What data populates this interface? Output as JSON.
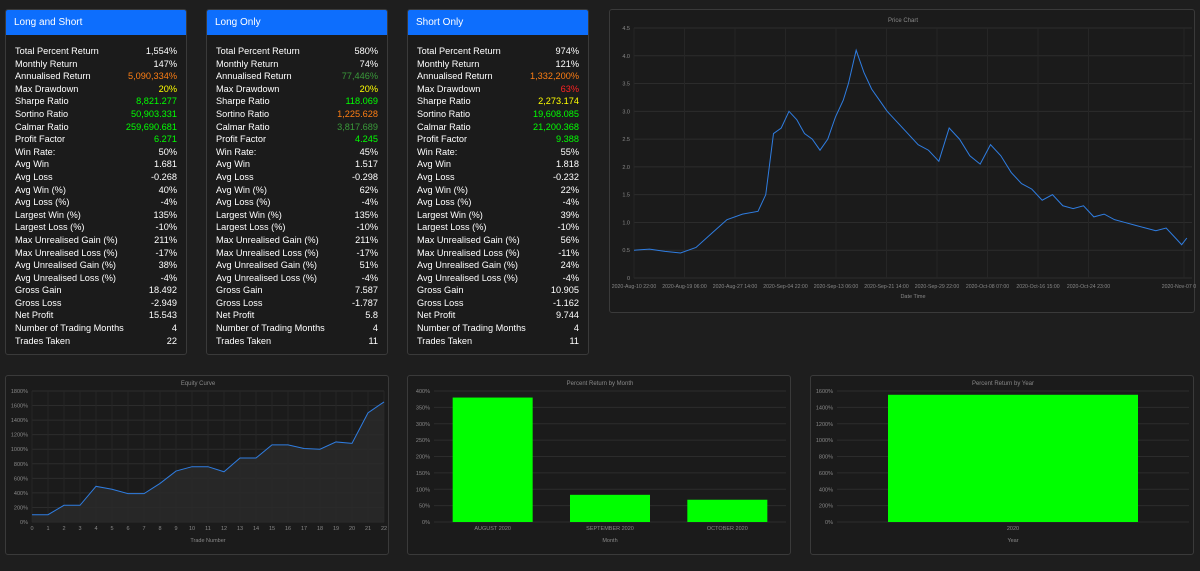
{
  "colors": {
    "accent": "#0d6efd",
    "orange": "#fd7e14",
    "green": "#00ff00",
    "yellow": "#ffff00",
    "red": "#ff2222",
    "line": "#2f7de1",
    "bar": "#00ff00"
  },
  "cards": [
    {
      "title": "Long and Short",
      "rows": [
        {
          "label": "Total Percent Return",
          "value": "1,554%",
          "color": "white"
        },
        {
          "label": "Monthly Return",
          "value": "147%",
          "color": "white"
        },
        {
          "label": "Annualised Return",
          "value": "5,090,334%",
          "color": "orange"
        },
        {
          "label": "Max Drawdown",
          "value": "20%",
          "color": "yellow"
        },
        {
          "label": "Sharpe Ratio",
          "value": "8,821.277",
          "color": "green"
        },
        {
          "label": "Sortino Ratio",
          "value": "50,903.331",
          "color": "green"
        },
        {
          "label": "Calmar Ratio",
          "value": "259,690.681",
          "color": "green"
        },
        {
          "label": "Profit Factor",
          "value": "6.271",
          "color": "green"
        },
        {
          "label": "Win Rate:",
          "value": "50%",
          "color": "white"
        },
        {
          "label": "Avg Win",
          "value": "1.681",
          "color": "white"
        },
        {
          "label": "Avg Loss",
          "value": "-0.268",
          "color": "white"
        },
        {
          "label": "Avg Win (%)",
          "value": "40%",
          "color": "white"
        },
        {
          "label": "Avg Loss (%)",
          "value": "-4%",
          "color": "white"
        },
        {
          "label": "Largest Win (%)",
          "value": "135%",
          "color": "white"
        },
        {
          "label": "Largest Loss (%)",
          "value": "-10%",
          "color": "white"
        },
        {
          "label": "Max Unrealised Gain (%)",
          "value": "211%",
          "color": "white"
        },
        {
          "label": "Max Unrealised Loss (%)",
          "value": "-17%",
          "color": "white"
        },
        {
          "label": "Avg Unrealised Gain (%)",
          "value": "38%",
          "color": "white"
        },
        {
          "label": "Avg Unrealised Loss (%)",
          "value": "-4%",
          "color": "white"
        },
        {
          "label": "Gross Gain",
          "value": "18.492",
          "color": "white"
        },
        {
          "label": "Gross Loss",
          "value": "-2.949",
          "color": "white"
        },
        {
          "label": "Net Profit",
          "value": "15.543",
          "color": "white"
        },
        {
          "label": "Number of Trading Months",
          "value": "4",
          "color": "white"
        },
        {
          "label": "Trades Taken",
          "value": "22",
          "color": "white"
        }
      ]
    },
    {
      "title": "Long Only",
      "rows": [
        {
          "label": "Total Percent Return",
          "value": "580%",
          "color": "white"
        },
        {
          "label": "Monthly Return",
          "value": "74%",
          "color": "white"
        },
        {
          "label": "Annualised Return",
          "value": "77,446%",
          "color": "darkgreen"
        },
        {
          "label": "Max Drawdown",
          "value": "20%",
          "color": "yellow"
        },
        {
          "label": "Sharpe Ratio",
          "value": "118.069",
          "color": "green"
        },
        {
          "label": "Sortino Ratio",
          "value": "1,225.628",
          "color": "orange"
        },
        {
          "label": "Calmar Ratio",
          "value": "3,817.689",
          "color": "darkgreen"
        },
        {
          "label": "Profit Factor",
          "value": "4.245",
          "color": "green"
        },
        {
          "label": "Win Rate:",
          "value": "45%",
          "color": "white"
        },
        {
          "label": "Avg Win",
          "value": "1.517",
          "color": "white"
        },
        {
          "label": "Avg Loss",
          "value": "-0.298",
          "color": "white"
        },
        {
          "label": "Avg Win (%)",
          "value": "62%",
          "color": "white"
        },
        {
          "label": "Avg Loss (%)",
          "value": "-4%",
          "color": "white"
        },
        {
          "label": "Largest Win (%)",
          "value": "135%",
          "color": "white"
        },
        {
          "label": "Largest Loss (%)",
          "value": "-10%",
          "color": "white"
        },
        {
          "label": "Max Unrealised Gain (%)",
          "value": "211%",
          "color": "white"
        },
        {
          "label": "Max Unrealised Loss (%)",
          "value": "-17%",
          "color": "white"
        },
        {
          "label": "Avg Unrealised Gain (%)",
          "value": "51%",
          "color": "white"
        },
        {
          "label": "Avg Unrealised Loss (%)",
          "value": "-4%",
          "color": "white"
        },
        {
          "label": "Gross Gain",
          "value": "7.587",
          "color": "white"
        },
        {
          "label": "Gross Loss",
          "value": "-1.787",
          "color": "white"
        },
        {
          "label": "Net Profit",
          "value": "5.8",
          "color": "white"
        },
        {
          "label": "Number of Trading Months",
          "value": "4",
          "color": "white"
        },
        {
          "label": "Trades Taken",
          "value": "11",
          "color": "white"
        }
      ]
    },
    {
      "title": "Short Only",
      "rows": [
        {
          "label": "Total Percent Return",
          "value": "974%",
          "color": "white"
        },
        {
          "label": "Monthly Return",
          "value": "121%",
          "color": "white"
        },
        {
          "label": "Annualised Return",
          "value": "1,332,200%",
          "color": "orange"
        },
        {
          "label": "Max Drawdown",
          "value": "63%",
          "color": "red"
        },
        {
          "label": "Sharpe Ratio",
          "value": "2,273.174",
          "color": "yellow"
        },
        {
          "label": "Sortino Ratio",
          "value": "19,608.085",
          "color": "green"
        },
        {
          "label": "Calmar Ratio",
          "value": "21,200.368",
          "color": "green"
        },
        {
          "label": "Profit Factor",
          "value": "9.388",
          "color": "green"
        },
        {
          "label": "Win Rate:",
          "value": "55%",
          "color": "white"
        },
        {
          "label": "Avg Win",
          "value": "1.818",
          "color": "white"
        },
        {
          "label": "Avg Loss",
          "value": "-0.232",
          "color": "white"
        },
        {
          "label": "Avg Win (%)",
          "value": "22%",
          "color": "white"
        },
        {
          "label": "Avg Loss (%)",
          "value": "-4%",
          "color": "white"
        },
        {
          "label": "Largest Win (%)",
          "value": "39%",
          "color": "white"
        },
        {
          "label": "Largest Loss (%)",
          "value": "-10%",
          "color": "white"
        },
        {
          "label": "Max Unrealised Gain (%)",
          "value": "56%",
          "color": "white"
        },
        {
          "label": "Max Unrealised Loss (%)",
          "value": "-11%",
          "color": "white"
        },
        {
          "label": "Avg Unrealised Gain (%)",
          "value": "24%",
          "color": "white"
        },
        {
          "label": "Avg Unrealised Loss (%)",
          "value": "-4%",
          "color": "white"
        },
        {
          "label": "Gross Gain",
          "value": "10.905",
          "color": "white"
        },
        {
          "label": "Gross Loss",
          "value": "-1.162",
          "color": "white"
        },
        {
          "label": "Net Profit",
          "value": "9.744",
          "color": "white"
        },
        {
          "label": "Number of Trading Months",
          "value": "4",
          "color": "white"
        },
        {
          "label": "Trades Taken",
          "value": "11",
          "color": "white"
        }
      ]
    }
  ],
  "chart_data": [
    {
      "type": "line",
      "title": "Price Chart",
      "xlabel": "Date Time",
      "ylabel": "",
      "ylim": [
        0,
        4.5
      ],
      "yticks": [
        "0",
        "0.5",
        "1.0",
        "1.5",
        "2.0",
        "2.5",
        "3.0",
        "3.5",
        "4.0",
        "4.5"
      ],
      "xticks": [
        "2020-Aug-10 22:00",
        "2020-Aug-19 06:00",
        "2020-Aug-27 14:00",
        "2020-Sep-04 22:00",
        "2020-Sep-13 06:00",
        "2020-Sep-21 14:00",
        "2020-Sep-29 22:00",
        "2020-Oct-08 07:00",
        "2020-Oct-16 15:00",
        "2020-Oct-24 23:00",
        "2020-Nov-07 07:00"
      ],
      "xrange": [
        0,
        10.8
      ],
      "x": [
        0,
        0.3,
        0.6,
        0.9,
        1.2,
        1.5,
        1.8,
        2.1,
        2.4,
        2.55,
        2.7,
        2.85,
        3.0,
        3.15,
        3.3,
        3.45,
        3.6,
        3.75,
        3.9,
        4.05,
        4.15,
        4.3,
        4.45,
        4.6,
        4.75,
        4.9,
        5.1,
        5.3,
        5.5,
        5.7,
        5.9,
        6.1,
        6.3,
        6.5,
        6.7,
        6.9,
        7.1,
        7.3,
        7.5,
        7.7,
        7.9,
        8.1,
        8.3,
        8.5,
        8.7,
        8.9,
        9.1,
        9.3,
        9.5,
        9.7,
        9.9,
        10.1,
        10.3,
        10.5,
        10.6,
        10.7
      ],
      "y": [
        0.5,
        0.52,
        0.48,
        0.45,
        0.55,
        0.8,
        1.05,
        1.15,
        1.2,
        1.5,
        2.6,
        2.7,
        3.0,
        2.85,
        2.6,
        2.5,
        2.3,
        2.5,
        2.9,
        3.2,
        3.5,
        4.1,
        3.7,
        3.4,
        3.2,
        3.0,
        2.8,
        2.6,
        2.4,
        2.3,
        2.1,
        2.7,
        2.5,
        2.2,
        2.05,
        2.4,
        2.2,
        1.9,
        1.7,
        1.6,
        1.4,
        1.5,
        1.3,
        1.25,
        1.3,
        1.1,
        1.15,
        1.05,
        1.0,
        0.95,
        0.9,
        0.85,
        0.9,
        0.7,
        0.6,
        0.72
      ]
    },
    {
      "type": "line",
      "title": "Equity Curve",
      "xlabel": "Trade Number",
      "ylabel": "",
      "ylim": [
        0,
        1800
      ],
      "yticks": [
        "0%",
        "200%",
        "400%",
        "600%",
        "800%",
        "1000%",
        "1200%",
        "1400%",
        "1600%",
        "1800%"
      ],
      "categories": [
        "0",
        "1",
        "2",
        "3",
        "4",
        "5",
        "6",
        "7",
        "8",
        "9",
        "10",
        "11",
        "12",
        "13",
        "14",
        "15",
        "16",
        "17",
        "18",
        "19",
        "20",
        "21",
        "22"
      ],
      "values": [
        100,
        100,
        230,
        230,
        490,
        450,
        390,
        390,
        530,
        700,
        760,
        760,
        690,
        880,
        880,
        1060,
        1060,
        1010,
        1000,
        1100,
        1080,
        1500,
        1650
      ]
    },
    {
      "type": "bar",
      "title": "Percent Return by Month",
      "xlabel": "Month",
      "ylabel": "",
      "ylim": [
        0,
        400
      ],
      "yticks": [
        "0%",
        "50%",
        "100%",
        "150%",
        "200%",
        "250%",
        "300%",
        "350%",
        "400%"
      ],
      "categories": [
        "AUGUST 2020",
        "SEPTEMBER 2020",
        "OCTOBER 2020"
      ],
      "values": [
        380,
        83,
        68
      ]
    },
    {
      "type": "bar",
      "title": "Percent Return by Year",
      "xlabel": "Year",
      "ylabel": "",
      "ylim": [
        0,
        1600
      ],
      "yticks": [
        "0%",
        "200%",
        "400%",
        "600%",
        "800%",
        "1000%",
        "1200%",
        "1400%",
        "1600%"
      ],
      "categories": [
        "2020"
      ],
      "values": [
        1554
      ]
    }
  ]
}
